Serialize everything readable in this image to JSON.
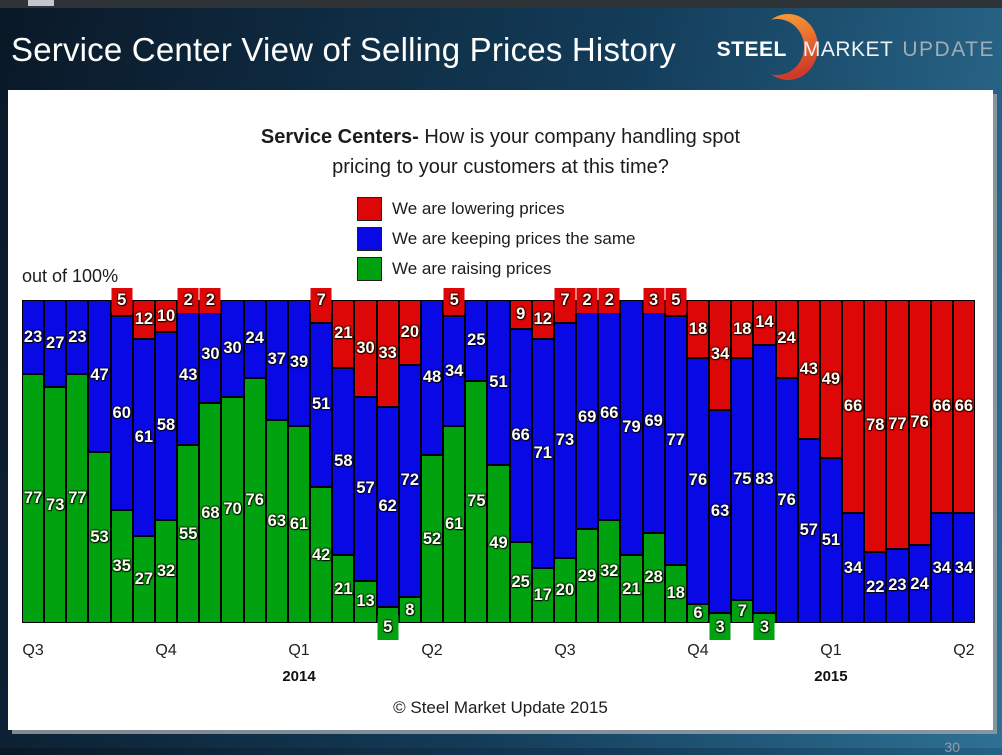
{
  "page": {
    "page_number": "30"
  },
  "header": {
    "title": "Service Center View of Selling Prices History",
    "logo": {
      "steel": "STEEL",
      "market": "MARKET",
      "update": "UPDATE"
    }
  },
  "slide": {
    "question": {
      "bold": "Service Centers-",
      "line1": " How is your company handling spot",
      "line2": "pricing to your customers at this time?"
    },
    "note": "out of 100%",
    "copyright": "© Steel Market Update 2015"
  },
  "chart_data": {
    "type": "bar",
    "subtype": "stacked-100-percent",
    "title": "Service Centers- How is your company handling spot pricing to your customers at this time?",
    "ylabel": "out of 100%",
    "ylim": [
      0,
      100
    ],
    "grid": false,
    "legend_position": "top-center",
    "stack_order_bottom_to_top": [
      "raising",
      "keeping",
      "lowering"
    ],
    "series": [
      {
        "key": "lowering",
        "name": "We are lowering prices",
        "color": "#dd0707"
      },
      {
        "key": "keeping",
        "name": "We are keeping prices the same",
        "color": "#0909e6"
      },
      {
        "key": "raising",
        "name": "We are raising prices",
        "color": "#00a30f"
      }
    ],
    "x_axis": {
      "tick_labels": [
        {
          "label": "Q3",
          "bar_index": 0
        },
        {
          "label": "Q4",
          "bar_index": 6
        },
        {
          "label": "Q1",
          "bar_index": 12,
          "year": "2014"
        },
        {
          "label": "Q2",
          "bar_index": 18
        },
        {
          "label": "Q3",
          "bar_index": 24
        },
        {
          "label": "Q4",
          "bar_index": 30
        },
        {
          "label": "Q1",
          "bar_index": 36,
          "year": "2015"
        },
        {
          "label": "Q2",
          "bar_index": 42
        }
      ]
    },
    "bars": [
      {
        "raising": 77,
        "keeping": 23,
        "lowering": 0
      },
      {
        "raising": 73,
        "keeping": 27,
        "lowering": 0
      },
      {
        "raising": 77,
        "keeping": 23,
        "lowering": 0
      },
      {
        "raising": 53,
        "keeping": 47,
        "lowering": 0
      },
      {
        "raising": 35,
        "keeping": 60,
        "lowering": 5
      },
      {
        "raising": 27,
        "keeping": 61,
        "lowering": 12
      },
      {
        "raising": 32,
        "keeping": 58,
        "lowering": 10
      },
      {
        "raising": 55,
        "keeping": 43,
        "lowering": 2
      },
      {
        "raising": 68,
        "keeping": 30,
        "lowering": 2
      },
      {
        "raising": 70,
        "keeping": 30,
        "lowering": 0
      },
      {
        "raising": 76,
        "keeping": 24,
        "lowering": 0
      },
      {
        "raising": 63,
        "keeping": 37,
        "lowering": 0
      },
      {
        "raising": 61,
        "keeping": 39,
        "lowering": 0
      },
      {
        "raising": 42,
        "keeping": 51,
        "lowering": 7
      },
      {
        "raising": 21,
        "keeping": 58,
        "lowering": 21
      },
      {
        "raising": 13,
        "keeping": 57,
        "lowering": 30
      },
      {
        "raising": 5,
        "keeping": 62,
        "lowering": 33
      },
      {
        "raising": 8,
        "keeping": 72,
        "lowering": 20
      },
      {
        "raising": 52,
        "keeping": 48,
        "lowering": 0
      },
      {
        "raising": 61,
        "keeping": 34,
        "lowering": 5
      },
      {
        "raising": 75,
        "keeping": 25,
        "lowering": 0
      },
      {
        "raising": 49,
        "keeping": 51,
        "lowering": 0
      },
      {
        "raising": 25,
        "keeping": 66,
        "lowering": 9
      },
      {
        "raising": 17,
        "keeping": 71,
        "lowering": 12
      },
      {
        "raising": 20,
        "keeping": 73,
        "lowering": 7
      },
      {
        "raising": 29,
        "keeping": 69,
        "lowering": 2
      },
      {
        "raising": 32,
        "keeping": 66,
        "lowering": 2
      },
      {
        "raising": 21,
        "keeping": 79,
        "lowering": 0
      },
      {
        "raising": 28,
        "keeping": 69,
        "lowering": 3
      },
      {
        "raising": 18,
        "keeping": 77,
        "lowering": 5
      },
      {
        "raising": 6,
        "keeping": 76,
        "lowering": 18
      },
      {
        "raising": 3,
        "keeping": 63,
        "lowering": 34
      },
      {
        "raising": 7,
        "keeping": 75,
        "lowering": 18
      },
      {
        "raising": 3,
        "keeping": 83,
        "lowering": 14
      },
      {
        "raising": 0,
        "keeping": 76,
        "lowering": 24
      },
      {
        "raising": 0,
        "keeping": 57,
        "lowering": 43
      },
      {
        "raising": 0,
        "keeping": 51,
        "lowering": 49
      },
      {
        "raising": 0,
        "keeping": 34,
        "lowering": 66
      },
      {
        "raising": 0,
        "keeping": 22,
        "lowering": 78
      },
      {
        "raising": 0,
        "keeping": 23,
        "lowering": 77
      },
      {
        "raising": 0,
        "keeping": 24,
        "lowering": 76
      },
      {
        "raising": 0,
        "keeping": 34,
        "lowering": 66
      },
      {
        "raising": 0,
        "keeping": 34,
        "lowering": 66
      }
    ]
  }
}
